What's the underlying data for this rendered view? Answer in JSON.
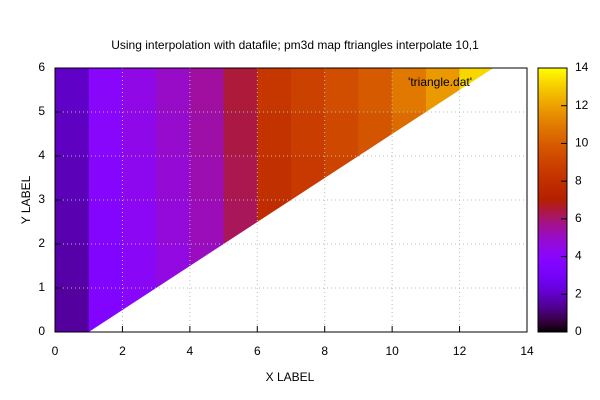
{
  "chart_data": {
    "type": "heatmap",
    "title": "Using interpolation with datafile; pm3d map ftriangles interpolate 10,1",
    "x_label": "X LABEL",
    "y_label": "Y LABEL",
    "legend_label": "'triangle.dat'",
    "x": [
      0,
      1,
      2,
      3,
      4,
      5,
      6,
      7,
      8,
      9,
      10,
      11,
      12,
      13
    ],
    "y": [
      0,
      1,
      2,
      3,
      4,
      5,
      6
    ],
    "boundary": [
      [
        0,
        0
      ],
      [
        1,
        0
      ],
      [
        13,
        6
      ],
      [
        0,
        6
      ]
    ],
    "z": [
      [
        1.5,
        3.5,
        4.0,
        null,
        null,
        null,
        null,
        null,
        null,
        null,
        null,
        null,
        null
      ],
      [
        1.6,
        3.6,
        4.1,
        4.6,
        5.1,
        null,
        null,
        null,
        null,
        null,
        null,
        null,
        null
      ],
      [
        1.7,
        3.7,
        4.2,
        4.7,
        5.2,
        6.2,
        7.8,
        null,
        null,
        null,
        null,
        null,
        null
      ],
      [
        1.8,
        3.8,
        4.3,
        4.8,
        5.3,
        6.3,
        8.0,
        8.5,
        9.0,
        null,
        null,
        null,
        null
      ],
      [
        1.9,
        3.9,
        4.4,
        4.9,
        5.4,
        6.4,
        8.2,
        8.7,
        9.2,
        9.7,
        10.5,
        null,
        null
      ],
      [
        2.0,
        4.0,
        4.5,
        5.0,
        5.5,
        6.5,
        8.4,
        8.9,
        9.4,
        9.9,
        10.9,
        11.8,
        13.2
      ]
    ],
    "xlim": [
      0,
      14
    ],
    "xticks": [
      0,
      2,
      4,
      6,
      8,
      10,
      12,
      14
    ],
    "ylim": [
      0,
      6
    ],
    "yticks": [
      0,
      1,
      2,
      3,
      4,
      5,
      6
    ],
    "cblim": [
      0,
      14
    ],
    "cbticks": [
      0,
      2,
      4,
      6,
      8,
      10,
      12,
      14
    ],
    "grid": true
  }
}
